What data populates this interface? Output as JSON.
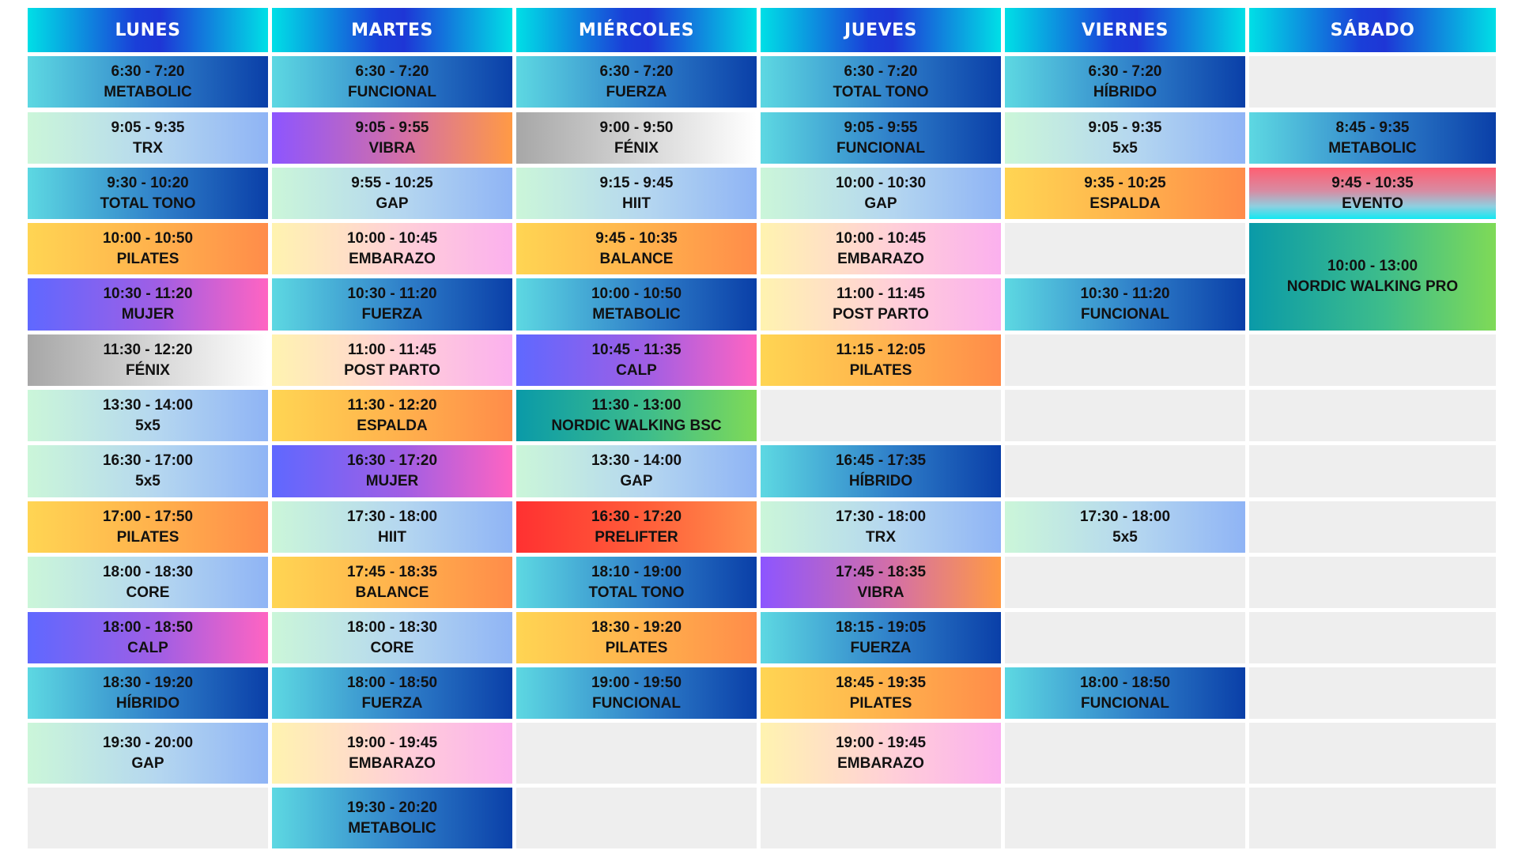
{
  "days": [
    "LUNES",
    "MARTES",
    "MIÉRCOLES",
    "JUEVES",
    "VIERNES",
    "SÁBADO"
  ],
  "schedule": [
    [
      {
        "time": "6:30 - 7:20",
        "name": "METABOLIC",
        "style": "blue"
      },
      {
        "time": "9:05 - 9:35",
        "name": "TRX",
        "style": "mint"
      },
      {
        "time": "9:30 - 10:20",
        "name": "TOTAL TONO",
        "style": "blue"
      },
      {
        "time": "10:00 - 10:50",
        "name": "PILATES",
        "style": "orange"
      },
      {
        "time": "10:30 - 11:20",
        "name": "MUJER",
        "style": "purple"
      },
      {
        "time": "11:30 - 12:20",
        "name": "FÉNIX",
        "style": "silver"
      },
      {
        "time": "13:30 - 14:00",
        "name": "5x5",
        "style": "mint"
      },
      {
        "time": "16:30 - 17:00",
        "name": "5x5",
        "style": "mint"
      },
      {
        "time": "17:00 - 17:50",
        "name": "PILATES",
        "style": "orange"
      },
      {
        "time": "18:00 - 18:30",
        "name": "CORE",
        "style": "mint"
      },
      {
        "time": "18:00 - 18:50",
        "name": "CALP",
        "style": "purple"
      },
      {
        "time": "18:30 - 19:20",
        "name": "HÍBRIDO",
        "style": "blue"
      },
      {
        "time": "19:30 - 20:00",
        "name": "GAP",
        "style": "mint"
      },
      null
    ],
    [
      {
        "time": "6:30 - 7:20",
        "name": "FUNCIONAL",
        "style": "blue"
      },
      {
        "time": "9:05 - 9:55",
        "name": "VIBRA",
        "style": "vibra"
      },
      {
        "time": "9:55 - 10:25",
        "name": "GAP",
        "style": "mint"
      },
      {
        "time": "10:00 - 10:45",
        "name": "EMBARAZO",
        "style": "peach"
      },
      {
        "time": "10:30 - 11:20",
        "name": "FUERZA",
        "style": "blue"
      },
      {
        "time": "11:00 - 11:45",
        "name": "POST PARTO",
        "style": "peach"
      },
      {
        "time": "11:30 - 12:20",
        "name": "ESPALDA",
        "style": "orange"
      },
      {
        "time": "16:30 - 17:20",
        "name": "MUJER",
        "style": "purple"
      },
      {
        "time": "17:30 - 18:00",
        "name": "HIIT",
        "style": "mint"
      },
      {
        "time": "17:45 - 18:35",
        "name": "BALANCE",
        "style": "orange"
      },
      {
        "time": "18:00 - 18:30",
        "name": "CORE",
        "style": "mint"
      },
      {
        "time": "18:00 - 18:50",
        "name": "FUERZA",
        "style": "blue"
      },
      {
        "time": "19:00 - 19:45",
        "name": "EMBARAZO",
        "style": "peach"
      },
      {
        "time": "19:30 - 20:20",
        "name": "METABOLIC",
        "style": "blue"
      }
    ],
    [
      {
        "time": "6:30 - 7:20",
        "name": "FUERZA",
        "style": "blue"
      },
      {
        "time": "9:00 - 9:50",
        "name": "FÉNIX",
        "style": "silver"
      },
      {
        "time": "9:15 - 9:45",
        "name": "HIIT",
        "style": "mint"
      },
      {
        "time": "9:45 - 10:35",
        "name": "BALANCE",
        "style": "orange"
      },
      {
        "time": "10:00 - 10:50",
        "name": "METABOLIC",
        "style": "blue"
      },
      {
        "time": "10:45 - 11:35",
        "name": "CALP",
        "style": "purple"
      },
      {
        "time": "11:30 - 13:00",
        "name": "NORDIC WALKING BSC",
        "style": "green"
      },
      {
        "time": "13:30 - 14:00",
        "name": "GAP",
        "style": "mint"
      },
      {
        "time": "16:30 - 17:20",
        "name": "PRELIFTER",
        "style": "red"
      },
      {
        "time": "18:10 - 19:00",
        "name": "TOTAL TONO",
        "style": "blue"
      },
      {
        "time": "18:30 - 19:20",
        "name": "PILATES",
        "style": "orange"
      },
      {
        "time": "19:00 - 19:50",
        "name": "FUNCIONAL",
        "style": "blue"
      },
      null,
      null
    ],
    [
      {
        "time": "6:30 - 7:20",
        "name": "TOTAL TONO",
        "style": "blue"
      },
      {
        "time": "9:05 - 9:55",
        "name": "FUNCIONAL",
        "style": "blue"
      },
      {
        "time": "10:00 - 10:30",
        "name": "GAP",
        "style": "mint"
      },
      {
        "time": "10:00 - 10:45",
        "name": "EMBARAZO",
        "style": "peach"
      },
      {
        "time": "11:00 - 11:45",
        "name": "POST PARTO",
        "style": "peach"
      },
      {
        "time": "11:15 - 12:05",
        "name": "PILATES",
        "style": "orange"
      },
      null,
      {
        "time": "16:45 - 17:35",
        "name": "HÍBRIDO",
        "style": "blue"
      },
      {
        "time": "17:30 - 18:00",
        "name": "TRX",
        "style": "mint"
      },
      {
        "time": "17:45 - 18:35",
        "name": "VIBRA",
        "style": "vibra"
      },
      {
        "time": "18:15 - 19:05",
        "name": "FUERZA",
        "style": "blue"
      },
      {
        "time": "18:45 - 19:35",
        "name": "PILATES",
        "style": "orange"
      },
      {
        "time": "19:00 - 19:45",
        "name": "EMBARAZO",
        "style": "peach"
      },
      null
    ],
    [
      {
        "time": "6:30 - 7:20",
        "name": "HÍBRIDO",
        "style": "blue"
      },
      {
        "time": "9:05 - 9:35",
        "name": "5x5",
        "style": "mint"
      },
      {
        "time": "9:35 - 10:25",
        "name": "ESPALDA",
        "style": "orange"
      },
      null,
      {
        "time": "10:30 - 11:20",
        "name": "FUNCIONAL",
        "style": "blue"
      },
      null,
      null,
      null,
      {
        "time": "17:30 - 18:00",
        "name": "5x5",
        "style": "mint"
      },
      null,
      null,
      {
        "time": "18:00 - 18:50",
        "name": "FUNCIONAL",
        "style": "blue"
      },
      null,
      null
    ],
    [
      null,
      {
        "time": "8:45 - 9:35",
        "name": "METABOLIC",
        "style": "blue"
      },
      {
        "time": "9:45 - 10:35",
        "name": "EVENTO",
        "style": "event"
      },
      {
        "time": "10:00 - 13:00",
        "name": "NORDIC WALKING PRO",
        "style": "green",
        "rows": 2
      },
      null,
      null,
      null,
      null,
      null,
      null,
      null,
      null,
      null
    ]
  ]
}
